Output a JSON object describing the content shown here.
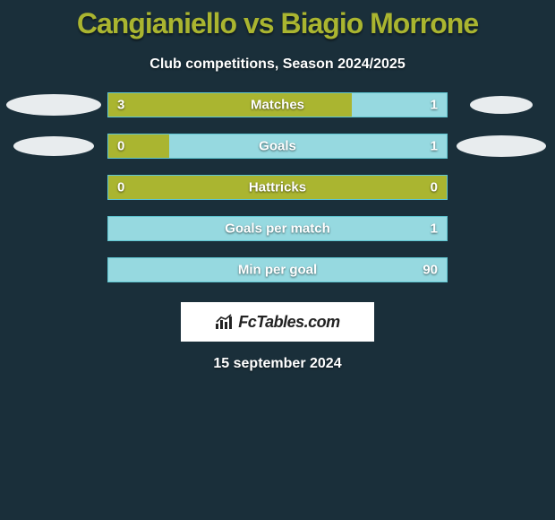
{
  "background_color": "#1a2f3a",
  "title": {
    "text": "Cangianiello vs Biagio Morrone",
    "color": "#aab530",
    "fontsize": 32
  },
  "subtitle": {
    "text": "Club competitions, Season 2024/2025",
    "color": "#ffffff",
    "fontsize": 16
  },
  "colors": {
    "left": "#aab530",
    "right": "#96d9e0",
    "track_border": "#5fc6d1",
    "oval": "#e8ecee"
  },
  "rows": [
    {
      "label": "Matches",
      "left_val": "3",
      "right_val": "1",
      "left_pct": 72,
      "right_pct": 28,
      "oval_left": {
        "w": 106,
        "h": 24
      },
      "oval_right": {
        "w": 70,
        "h": 20
      }
    },
    {
      "label": "Goals",
      "left_val": "0",
      "right_val": "1",
      "left_pct": 18,
      "right_pct": 82,
      "oval_left": {
        "w": 90,
        "h": 22
      },
      "oval_right": {
        "w": 100,
        "h": 24
      }
    },
    {
      "label": "Hattricks",
      "left_val": "0",
      "right_val": "0",
      "left_pct": 100,
      "right_pct": 0,
      "oval_left": null,
      "oval_right": null
    },
    {
      "label": "Goals per match",
      "left_val": "",
      "right_val": "1",
      "left_pct": 0,
      "right_pct": 100,
      "oval_left": null,
      "oval_right": null
    },
    {
      "label": "Min per goal",
      "left_val": "",
      "right_val": "90",
      "left_pct": 0,
      "right_pct": 100,
      "oval_left": null,
      "oval_right": null
    }
  ],
  "footer": {
    "brand_prefix": "Fc",
    "brand_suffix": "Tables.com",
    "box_bg": "#ffffff",
    "text_color": "#222222"
  },
  "date": "15 september 2024",
  "bar": {
    "height": 28,
    "row_gap": 18,
    "value_fontsize": 15,
    "label_fontsize": 15
  }
}
